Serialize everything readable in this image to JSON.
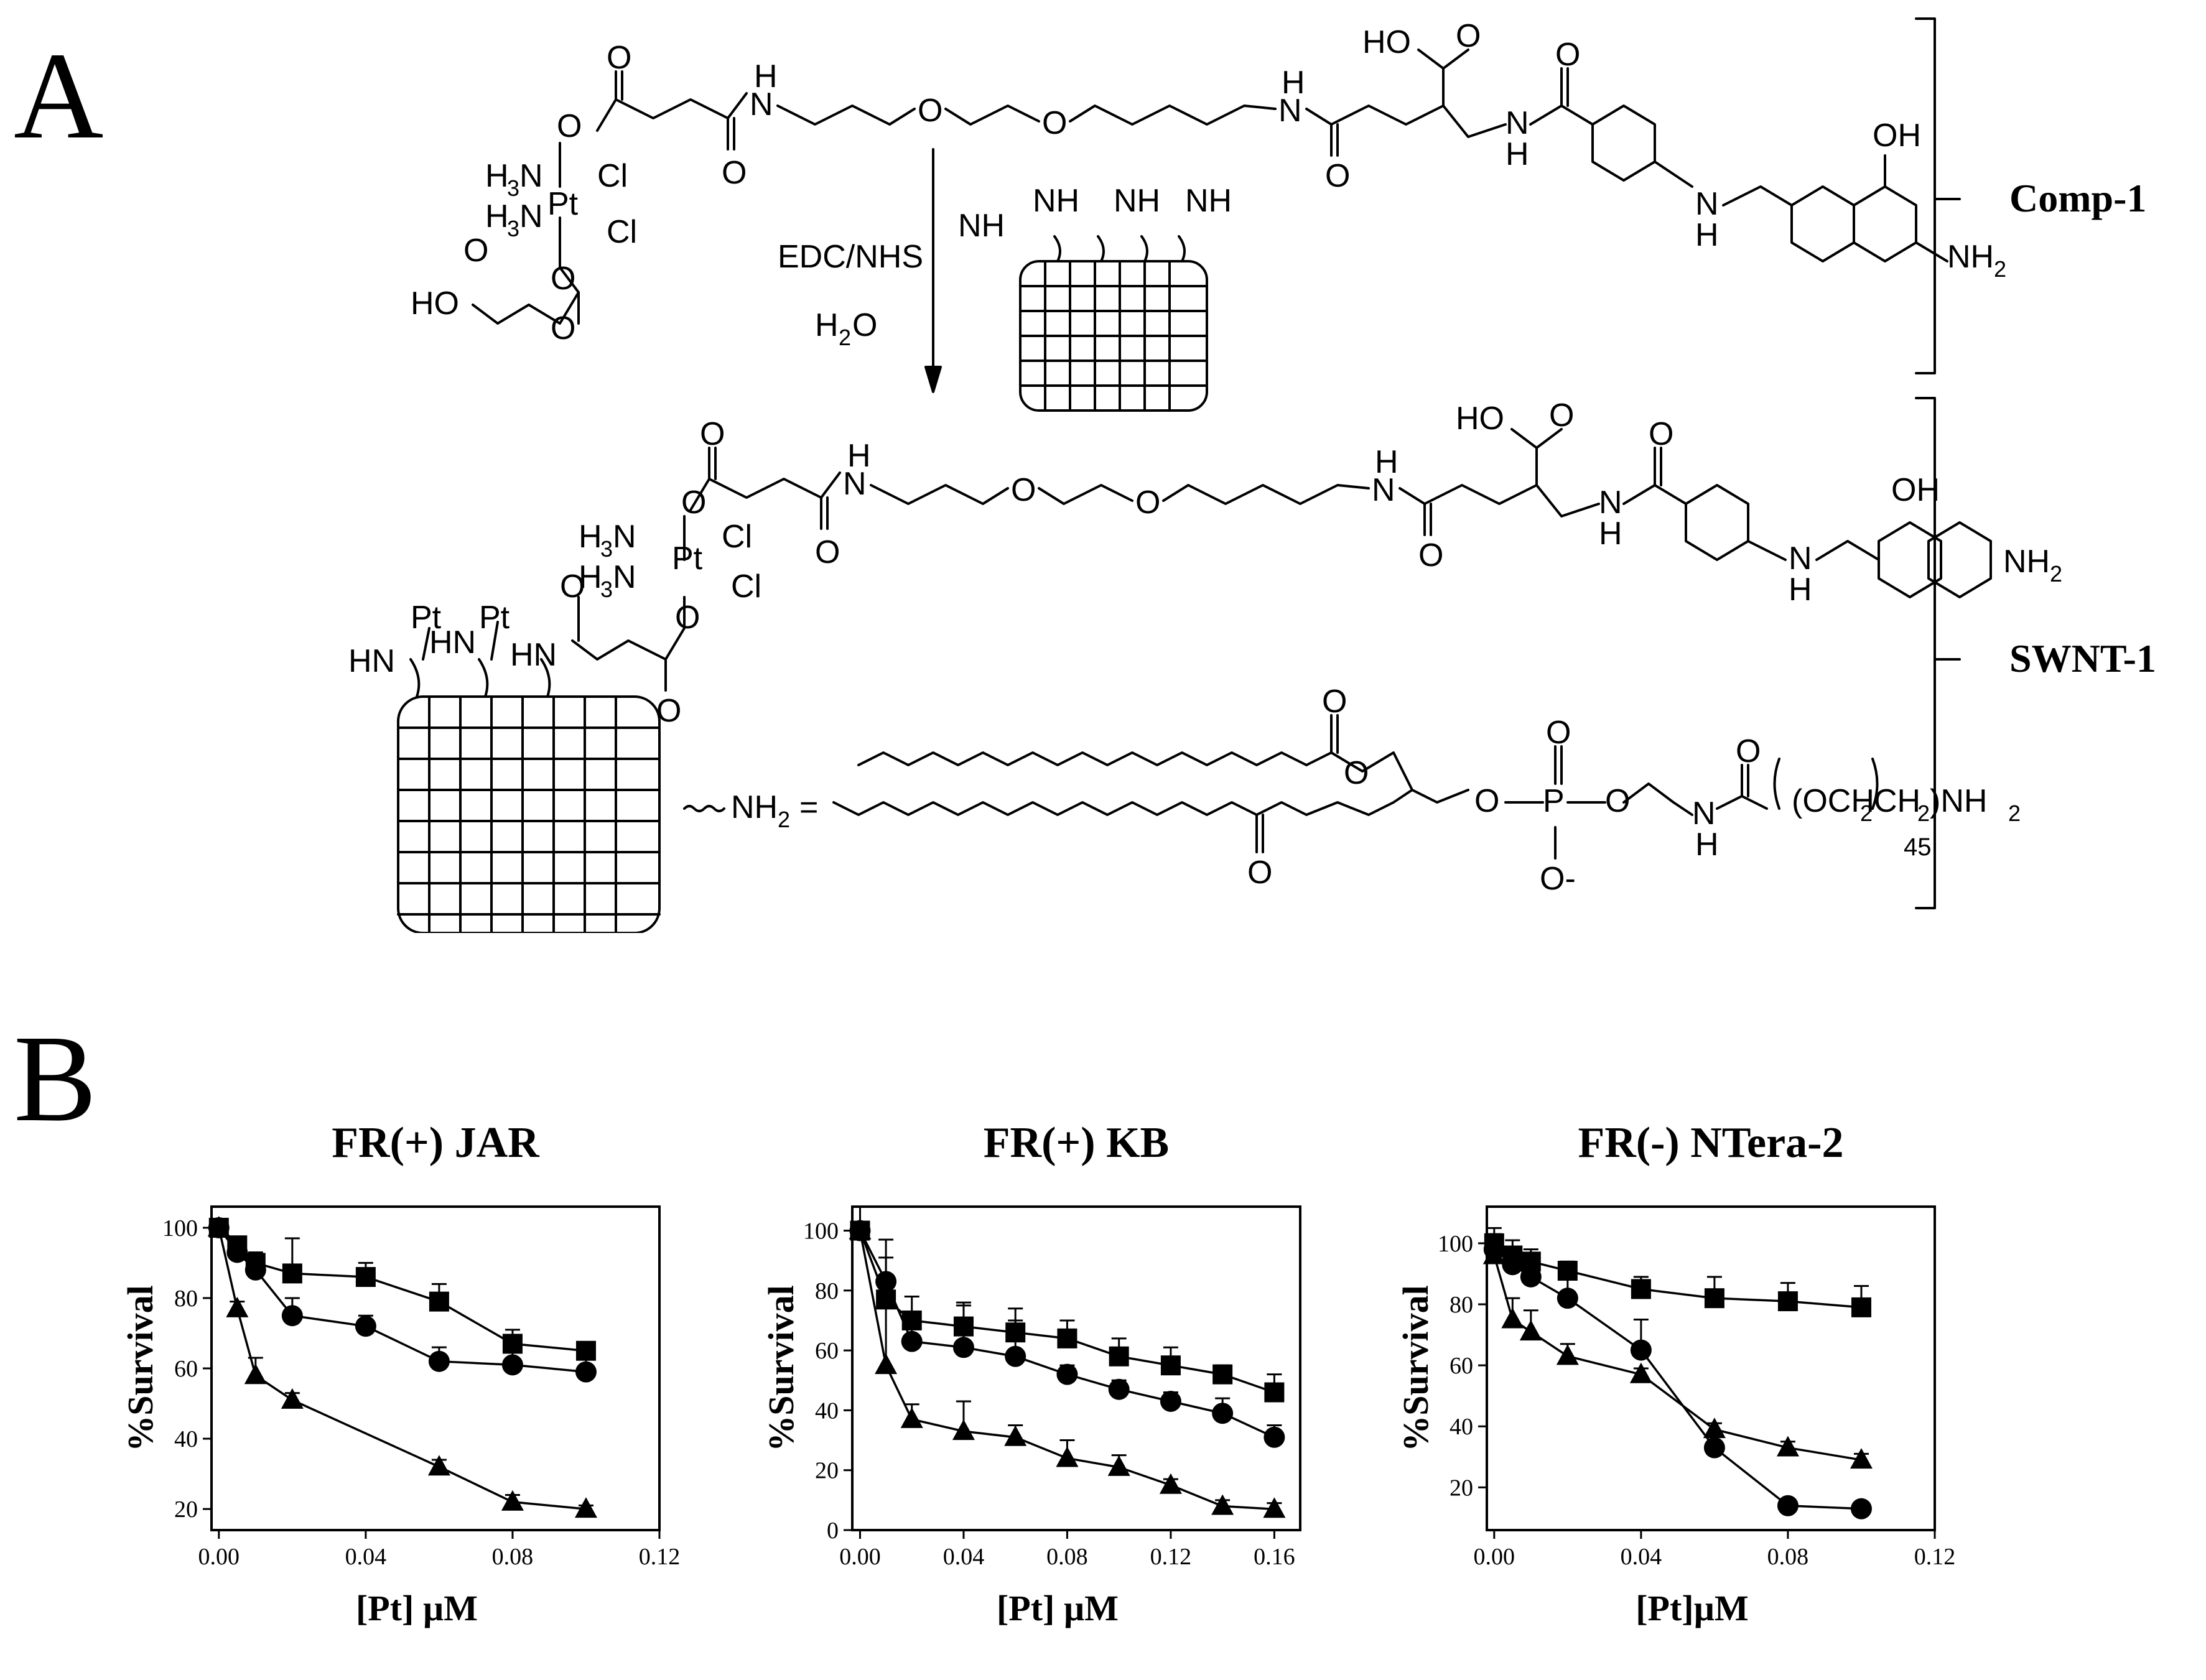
{
  "panel_labels": {
    "a": "A",
    "b": "B"
  },
  "scheme": {
    "reagents": {
      "line1": "EDC/NHS",
      "line2": "H",
      "line2_sub": "2",
      "line2_end": "O"
    },
    "brackets": {
      "comp": "Comp-1",
      "swnt": "SWNT-1"
    },
    "pt_ligands": {
      "amine_a": "H",
      "amine_sub": "3",
      "amine_n": "N",
      "pt": "Pt",
      "cl": "Cl"
    },
    "linker_atoms": {
      "o": "O",
      "n": "N",
      "h": "H",
      "ho": "HO",
      "oh": "OH",
      "nh2": "NH",
      "sub2": "2",
      "hn": "HN"
    },
    "lipid": {
      "nh2_eq": "NH",
      "sub2": "2",
      "eq": "=",
      "p": "P",
      "ominus": "O-",
      "peg": "(OCH",
      "peg2": "CH",
      "peg_end": ")NH",
      "n45": "45"
    }
  },
  "chart_data": [
    {
      "type": "line",
      "title": "FR(+) JAR",
      "xlabel": "[Pt] µM",
      "ylabel": "%Survival",
      "xlim": [
        -0.002,
        0.12
      ],
      "ylim": [
        14,
        106
      ],
      "xticks": [
        "0.00",
        "0.04",
        "0.08",
        "0.12"
      ],
      "xtick_values": [
        0.0,
        0.04,
        0.08,
        0.12
      ],
      "yticks": [
        "20",
        "40",
        "60",
        "80",
        "100"
      ],
      "ytick_values": [
        20,
        40,
        60,
        80,
        100
      ],
      "series": [
        {
          "marker": "square",
          "x": [
            0,
            0.005,
            0.01,
            0.02,
            0.04,
            0.06,
            0.08,
            0.1
          ],
          "y": [
            100,
            95,
            90,
            87,
            86,
            79,
            67,
            65
          ],
          "err": [
            2,
            2,
            3,
            10,
            4,
            5,
            4,
            2
          ]
        },
        {
          "marker": "circle",
          "x": [
            0,
            0.005,
            0.01,
            0.02,
            0.04,
            0.06,
            0.08,
            0.1
          ],
          "y": [
            100,
            93,
            88,
            75,
            72,
            62,
            61,
            59
          ],
          "err": [
            2,
            2,
            3,
            5,
            3,
            4,
            8,
            6
          ]
        },
        {
          "marker": "triangle",
          "x": [
            0,
            0.005,
            0.01,
            0.02,
            0.06,
            0.08,
            0.1
          ],
          "y": [
            100,
            77,
            58,
            51,
            32,
            22,
            20
          ],
          "err": [
            2,
            2,
            5,
            2,
            2,
            2,
            1
          ]
        }
      ]
    },
    {
      "type": "line",
      "title": "FR(+) KB",
      "xlabel": "[Pt] µM",
      "ylabel": "%Survival",
      "xlim": [
        -0.003,
        0.17
      ],
      "ylim": [
        0,
        108
      ],
      "xticks": [
        "0.00",
        "0.04",
        "0.08",
        "0.12",
        "0.16"
      ],
      "xtick_values": [
        0.0,
        0.04,
        0.08,
        0.12,
        0.16
      ],
      "yticks": [
        "0",
        "20",
        "40",
        "60",
        "80",
        "100"
      ],
      "ytick_values": [
        0,
        20,
        40,
        60,
        80,
        100
      ],
      "series": [
        {
          "marker": "square",
          "x": [
            0,
            0.01,
            0.02,
            0.04,
            0.06,
            0.08,
            0.1,
            0.12,
            0.14,
            0.16
          ],
          "y": [
            100,
            77,
            70,
            68,
            66,
            64,
            58,
            55,
            52,
            46
          ],
          "err": [
            8,
            20,
            8,
            8,
            8,
            6,
            6,
            6,
            3,
            6
          ]
        },
        {
          "marker": "circle",
          "x": [
            0,
            0.01,
            0.02,
            0.04,
            0.06,
            0.08,
            0.1,
            0.12,
            0.14,
            0.16
          ],
          "y": [
            100,
            83,
            63,
            61,
            58,
            52,
            47,
            43,
            39,
            31
          ],
          "err": [
            8,
            8,
            6,
            14,
            12,
            3,
            3,
            3,
            5,
            4
          ]
        },
        {
          "marker": "triangle",
          "x": [
            0,
            0.01,
            0.02,
            0.04,
            0.06,
            0.08,
            0.1,
            0.12,
            0.14,
            0.16
          ],
          "y": [
            100,
            55,
            37,
            33,
            31,
            24,
            21,
            15,
            8,
            7
          ],
          "err": [
            8,
            20,
            5,
            10,
            4,
            6,
            4,
            2,
            2,
            2
          ]
        }
      ]
    },
    {
      "type": "line",
      "title": "FR(-) NTera-2",
      "xlabel": "[Pt]µM",
      "ylabel": "%Survival",
      "xlim": [
        -0.002,
        0.12
      ],
      "ylim": [
        6,
        112
      ],
      "xticks": [
        "0.00",
        "0.04",
        "0.08",
        "0.12"
      ],
      "xtick_values": [
        0.0,
        0.04,
        0.08,
        0.12
      ],
      "yticks": [
        "20",
        "40",
        "60",
        "80",
        "100"
      ],
      "ytick_values": [
        20,
        40,
        60,
        80,
        100
      ],
      "series": [
        {
          "marker": "square",
          "x": [
            0,
            0.005,
            0.01,
            0.02,
            0.04,
            0.06,
            0.08,
            0.1
          ],
          "y": [
            100,
            96,
            94,
            91,
            85,
            82,
            81,
            79
          ],
          "err": [
            5,
            5,
            4,
            3,
            4,
            7,
            6,
            7
          ]
        },
        {
          "marker": "circle",
          "x": [
            0,
            0.005,
            0.01,
            0.02,
            0.04,
            0.06,
            0.08,
            0.1
          ],
          "y": [
            98,
            93,
            89,
            82,
            65,
            33,
            14,
            13
          ],
          "err": [
            5,
            5,
            5,
            9,
            10,
            2,
            1,
            1
          ]
        },
        {
          "marker": "triangle",
          "x": [
            0,
            0.005,
            0.01,
            0.02,
            0.04,
            0.06,
            0.08,
            0.1
          ],
          "y": [
            96,
            75,
            71,
            63,
            57,
            39,
            33,
            29
          ],
          "err": [
            5,
            7,
            7,
            4,
            2,
            2,
            2,
            2
          ]
        }
      ]
    }
  ]
}
